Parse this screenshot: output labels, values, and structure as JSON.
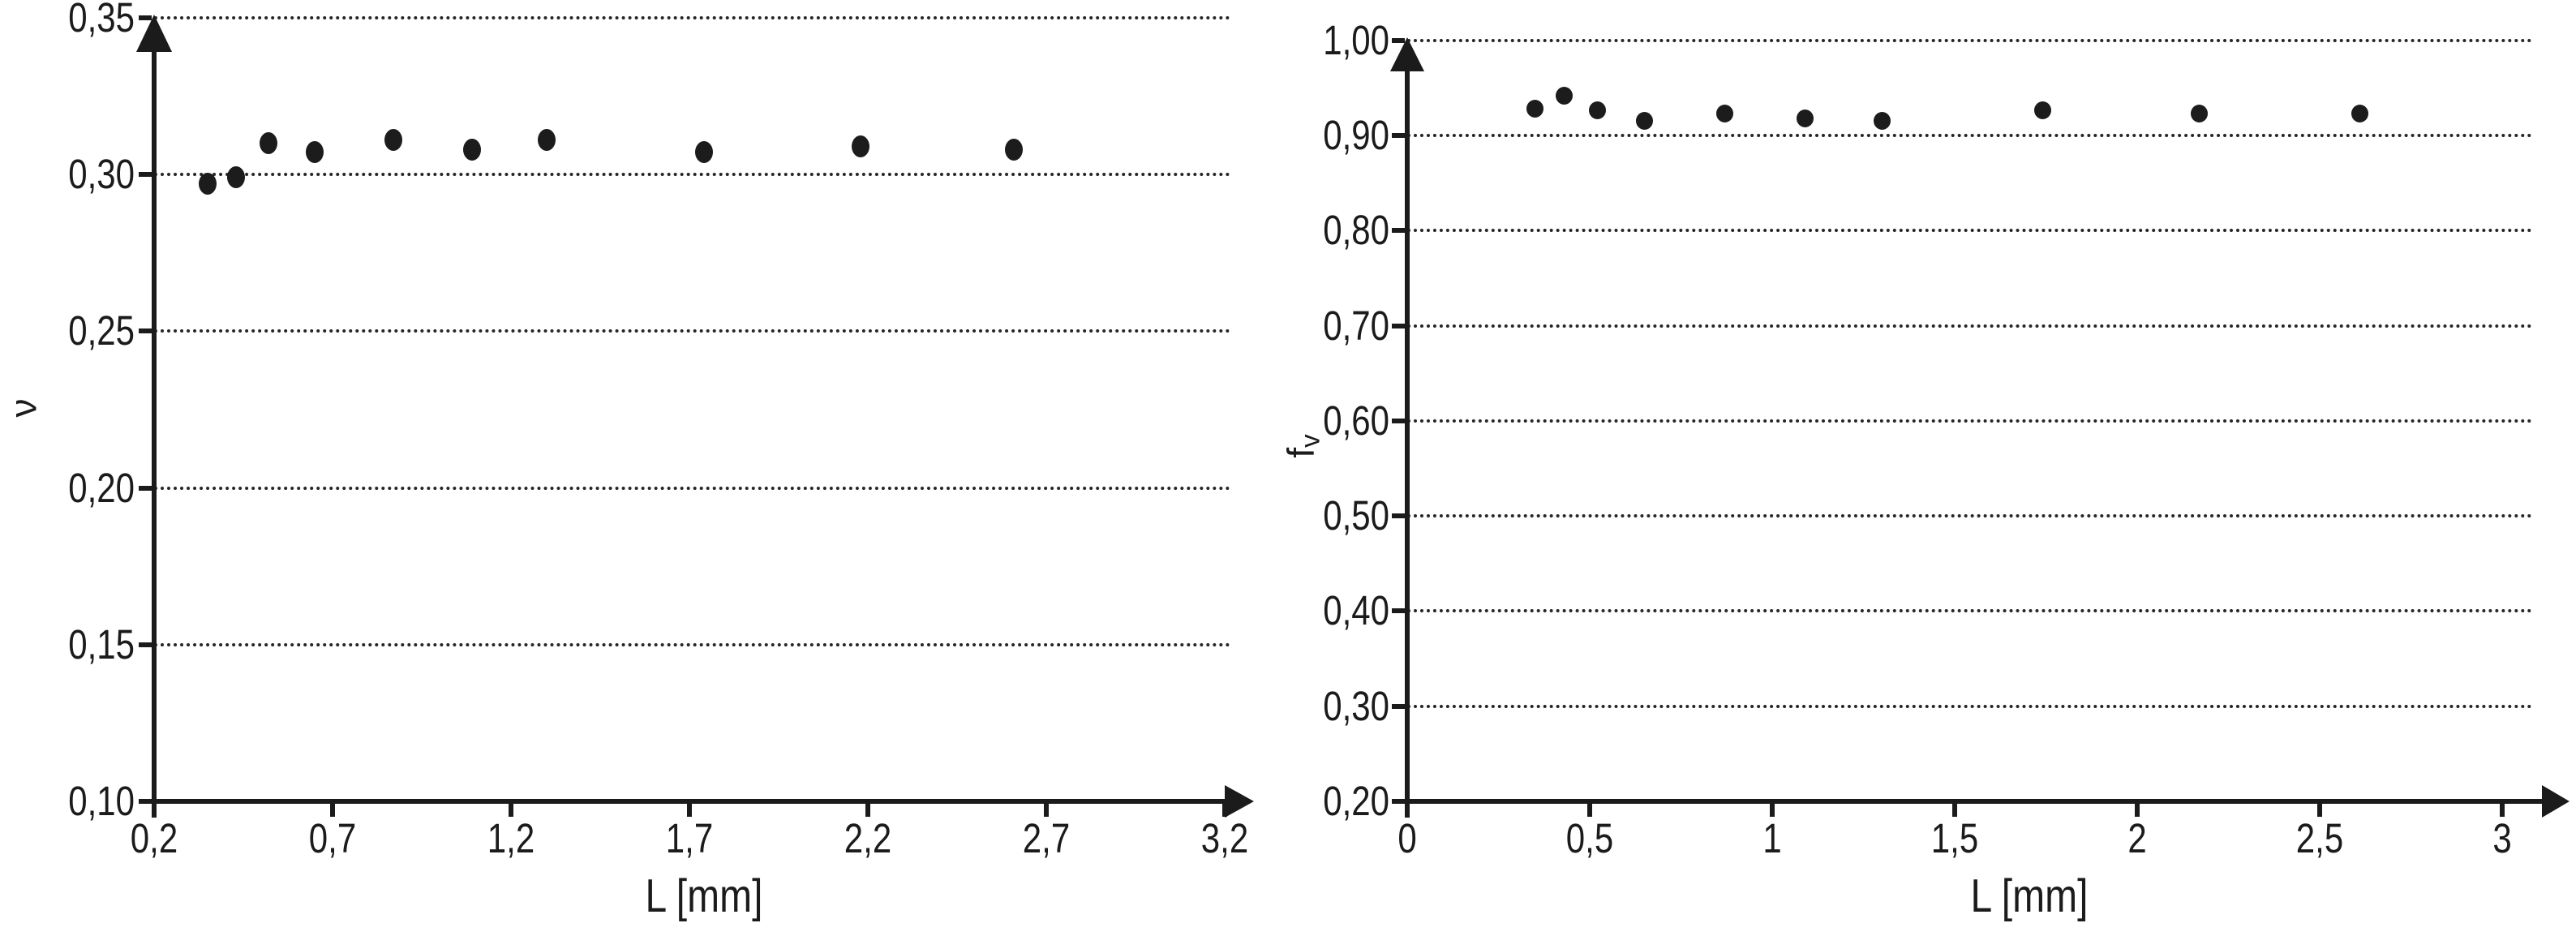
{
  "figure": {
    "background": "#ffffff",
    "ink_color": "#1b1b1b"
  },
  "chart_data": [
    {
      "type": "scatter",
      "title": "",
      "xlabel": "L [mm]",
      "ylabel": "ν",
      "ylabel_base": "ν",
      "ylabel_sub": "",
      "x": [
        0.35,
        0.43,
        0.52,
        0.65,
        0.87,
        1.09,
        1.3,
        1.74,
        2.18,
        2.61
      ],
      "y": [
        0.297,
        0.299,
        0.31,
        0.307,
        0.311,
        0.308,
        0.311,
        0.307,
        0.309,
        0.308
      ],
      "xlim": [
        0.2,
        3.2
      ],
      "ylim": [
        0.1,
        0.35
      ],
      "x_tick_values": [
        0.2,
        0.7,
        1.2,
        1.7,
        2.2,
        2.7,
        3.2
      ],
      "x_tick_labels": [
        "0,2",
        "0,7",
        "1,2",
        "1,7",
        "2,2",
        "2,7",
        "3,2"
      ],
      "y_tick_values": [
        0.35,
        0.3,
        0.25,
        0.2,
        0.15,
        0.1
      ],
      "y_tick_labels": [
        "0,35",
        "0,30",
        "0,25",
        "0,20",
        "0,15",
        "0,10"
      ],
      "grid": "horizontal dotted lines at each y tick",
      "legend": "none",
      "marker": {
        "shape": "circle",
        "color": "#1c1c1c"
      }
    },
    {
      "type": "scatter",
      "title": "",
      "xlabel": "L [mm]",
      "ylabel": "fv",
      "ylabel_base": "f",
      "ylabel_sub": "v",
      "x": [
        0.35,
        0.43,
        0.52,
        0.65,
        0.87,
        1.09,
        1.3,
        1.74,
        2.17,
        2.61
      ],
      "y": [
        0.928,
        0.942,
        0.926,
        0.915,
        0.923,
        0.918,
        0.915,
        0.926,
        0.923,
        0.923
      ],
      "xlim": [
        0,
        3.2
      ],
      "ylim": [
        0.2,
        1.0
      ],
      "x_tick_values": [
        0,
        0.5,
        1,
        1.5,
        2,
        2.5,
        3
      ],
      "x_tick_labels": [
        "0",
        "0,5",
        "1",
        "1,5",
        "2",
        "2,5",
        "3"
      ],
      "y_tick_values": [
        1.0,
        0.9,
        0.8,
        0.7,
        0.6,
        0.5,
        0.4,
        0.3,
        0.2
      ],
      "y_tick_labels": [
        "1,00",
        "0,90",
        "0,80",
        "0,70",
        "0,60",
        "0,50",
        "0,40",
        "0,30",
        "0,20"
      ],
      "grid": "horizontal dotted lines at each y tick",
      "legend": "none",
      "marker": {
        "shape": "circle",
        "color": "#1c1c1c"
      }
    }
  ]
}
